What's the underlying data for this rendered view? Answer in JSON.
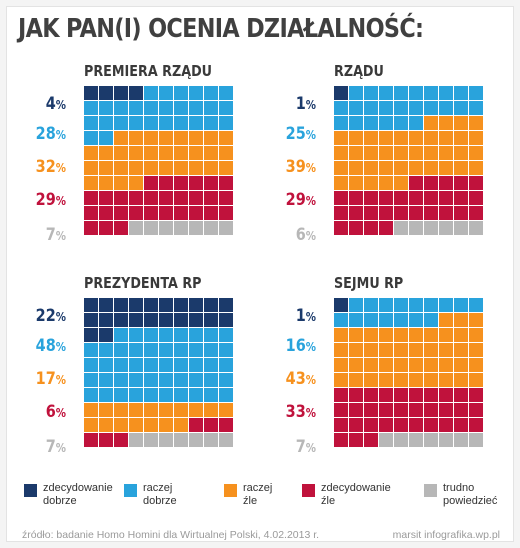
{
  "title": "JAK PAN(I) OCENIA DZIAŁALNOŚĆ:",
  "colors": {
    "zdecydowanie_dobrze": "#1b3a6b",
    "raczej_dobrze": "#29a3dc",
    "raczej_zle": "#f6911e",
    "zdecydowanie_zle": "#c0123c",
    "trudno_powiedziec": "#b7b7b7"
  },
  "chart_data": [
    {
      "type": "waffle",
      "title": "PREMIERA RZĄDU",
      "categories": [
        "zdecydowanie dobrze",
        "raczej dobrze",
        "raczej źle",
        "zdecydowanie źle",
        "trudno powiedzieć"
      ],
      "values": [
        4,
        28,
        32,
        29,
        7
      ],
      "labels": [
        "4",
        "28",
        "32",
        "29",
        "7"
      ]
    },
    {
      "type": "waffle",
      "title": "RZĄDU",
      "categories": [
        "zdecydowanie dobrze",
        "raczej dobrze",
        "raczej źle",
        "zdecydowanie źle",
        "trudno powiedzieć"
      ],
      "values": [
        1,
        25,
        39,
        29,
        6
      ],
      "labels": [
        "1",
        "25",
        "39",
        "29",
        "6"
      ]
    },
    {
      "type": "waffle",
      "title": "PREZYDENTA RP",
      "categories": [
        "zdecydowanie dobrze",
        "raczej dobrze",
        "raczej źle",
        "zdecydowanie źle",
        "trudno powiedzieć"
      ],
      "values": [
        22,
        48,
        17,
        6,
        7
      ],
      "labels": [
        "22",
        "48",
        "17",
        "6",
        "7"
      ]
    },
    {
      "type": "waffle",
      "title": "SEJMU RP",
      "categories": [
        "zdecydowanie dobrze",
        "raczej dobrze",
        "raczej źle",
        "zdecydowanie źle",
        "trudno powiedzieć"
      ],
      "values": [
        1,
        16,
        43,
        33,
        7
      ],
      "labels": [
        "1",
        "16",
        "43",
        "33",
        "7"
      ]
    }
  ],
  "percent_symbol": "%",
  "legend": [
    {
      "label": "zdecydowanie\ndobrze",
      "color": "#1b3a6b"
    },
    {
      "label": "raczej\ndobrze",
      "color": "#29a3dc"
    },
    {
      "label": "raczej\nźle",
      "color": "#f6911e"
    },
    {
      "label": "zdecydowanie\nźle",
      "color": "#c0123c"
    },
    {
      "label": "trudno\npowiedzieć",
      "color": "#b7b7b7"
    }
  ],
  "footer": {
    "source": "źródło: badanie Homo Homini dla Wirtualnej Polski, 4.02.2013 r.",
    "credit": "marsit infografika.wp.pl"
  }
}
